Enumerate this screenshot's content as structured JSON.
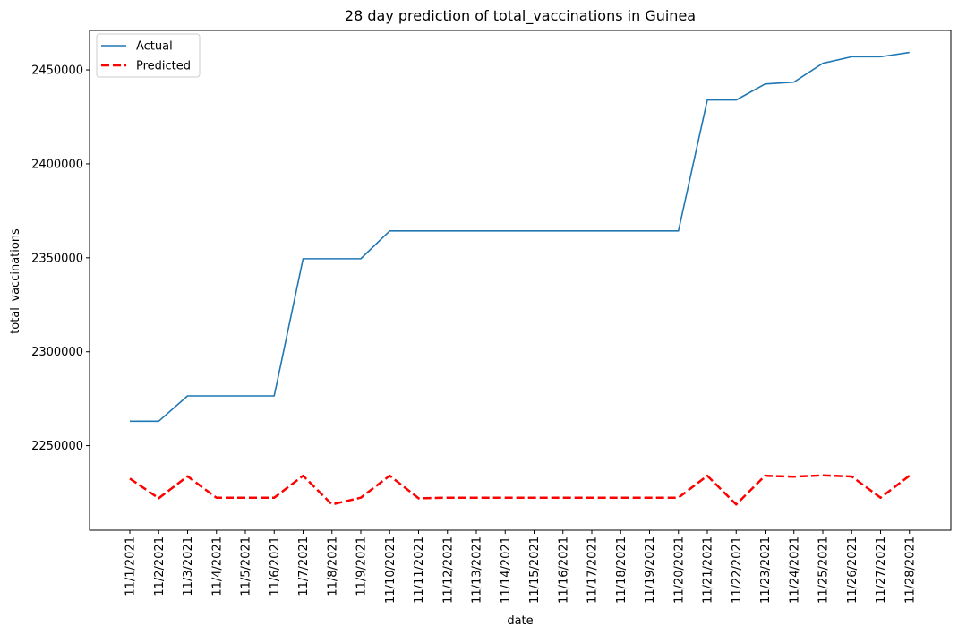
{
  "chart_data": {
    "type": "line",
    "title": "28 day prediction of total_vaccinations in Guinea",
    "xlabel": "date",
    "ylabel": "total_vaccinations",
    "categories": [
      "11/1/2021",
      "11/2/2021",
      "11/3/2021",
      "11/4/2021",
      "11/5/2021",
      "11/6/2021",
      "11/7/2021",
      "11/8/2021",
      "11/9/2021",
      "11/10/2021",
      "11/11/2021",
      "11/12/2021",
      "11/13/2021",
      "11/14/2021",
      "11/15/2021",
      "11/16/2021",
      "11/17/2021",
      "11/18/2021",
      "11/19/2021",
      "11/20/2021",
      "11/21/2021",
      "11/22/2021",
      "11/23/2021",
      "11/24/2021",
      "11/25/2021",
      "11/26/2021",
      "11/27/2021",
      "11/28/2021"
    ],
    "ylim": [
      2205000,
      2471000
    ],
    "yticks": [
      2250000,
      2300000,
      2350000,
      2400000,
      2450000
    ],
    "legend": "top-left",
    "grid": false,
    "series": [
      {
        "name": "Actual",
        "color": "#1f77b4",
        "style": "solid",
        "values": [
          2263000,
          2263000,
          2276500,
          2276500,
          2276500,
          2276500,
          2349500,
          2349500,
          2349500,
          2364300,
          2364300,
          2364300,
          2364300,
          2364300,
          2364300,
          2364300,
          2364300,
          2364300,
          2364300,
          2364300,
          2434000,
          2434000,
          2442500,
          2443500,
          2453500,
          2457000,
          2457000,
          2459300
        ]
      },
      {
        "name": "Predicted",
        "color": "#ff0000",
        "style": "dashed",
        "values": [
          2232500,
          2222000,
          2233700,
          2222300,
          2222300,
          2222300,
          2234000,
          2218700,
          2222300,
          2234000,
          2222000,
          2222300,
          2222300,
          2222300,
          2222300,
          2222300,
          2222300,
          2222300,
          2222300,
          2222300,
          2234000,
          2218700,
          2234000,
          2233500,
          2234200,
          2233600,
          2222300,
          2234000
        ]
      }
    ]
  }
}
